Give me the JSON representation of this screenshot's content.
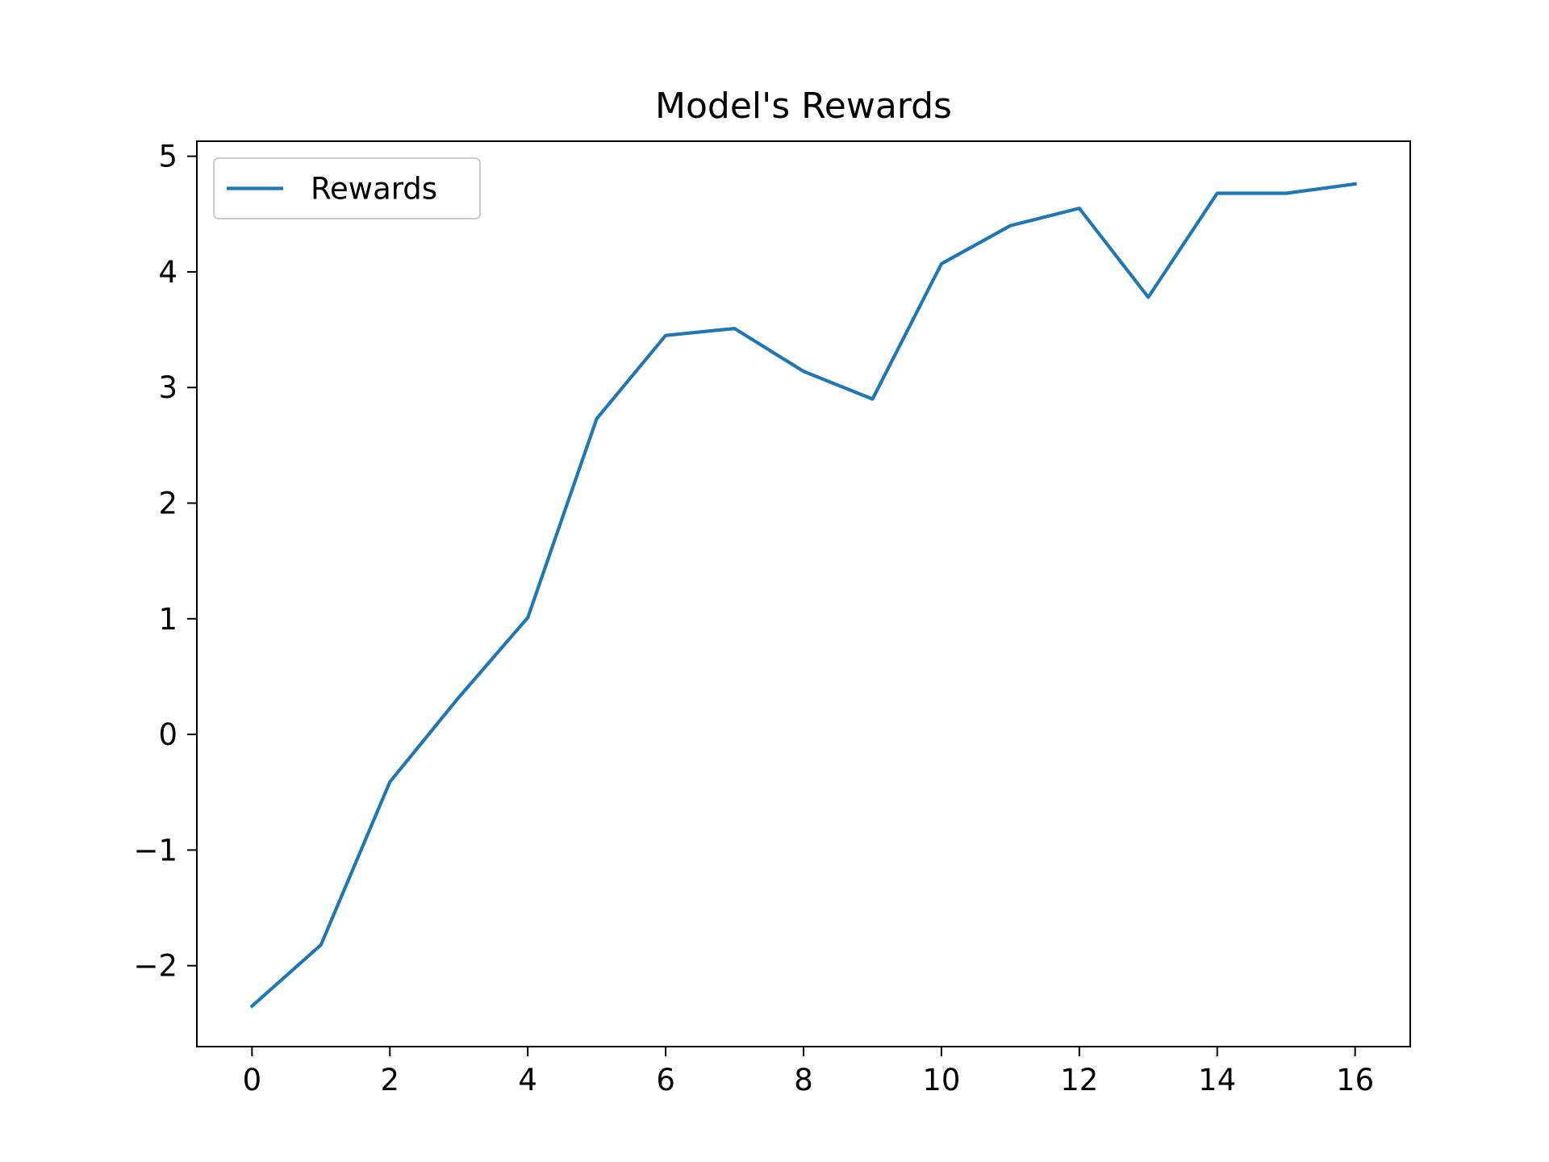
{
  "chart_data": {
    "type": "line",
    "title": "Model's Rewards",
    "xlabel": "",
    "ylabel": "",
    "xlim": [
      -0.8,
      16.8
    ],
    "ylim": [
      -2.7,
      5.13
    ],
    "xticks": [
      0,
      2,
      4,
      6,
      8,
      10,
      12,
      14,
      16
    ],
    "xtick_labels": [
      "0",
      "2",
      "4",
      "6",
      "8",
      "10",
      "12",
      "14",
      "16"
    ],
    "yticks": [
      -2,
      -1,
      0,
      1,
      2,
      3,
      4,
      5
    ],
    "ytick_labels": [
      "−2",
      "−1",
      "0",
      "1",
      "2",
      "3",
      "4",
      "5"
    ],
    "grid": false,
    "legend_position": "upper-left",
    "series": [
      {
        "name": "Rewards",
        "color": "#1f77b4",
        "x": [
          0,
          1,
          2,
          3,
          4,
          5,
          6,
          7,
          8,
          9,
          10,
          11,
          12,
          13,
          14,
          15,
          16
        ],
        "y": [
          -2.35,
          -1.82,
          -0.41,
          0.32,
          1.01,
          2.73,
          3.45,
          3.51,
          3.14,
          2.9,
          4.07,
          4.4,
          4.55,
          3.78,
          4.68,
          4.68,
          4.76
        ]
      }
    ]
  }
}
